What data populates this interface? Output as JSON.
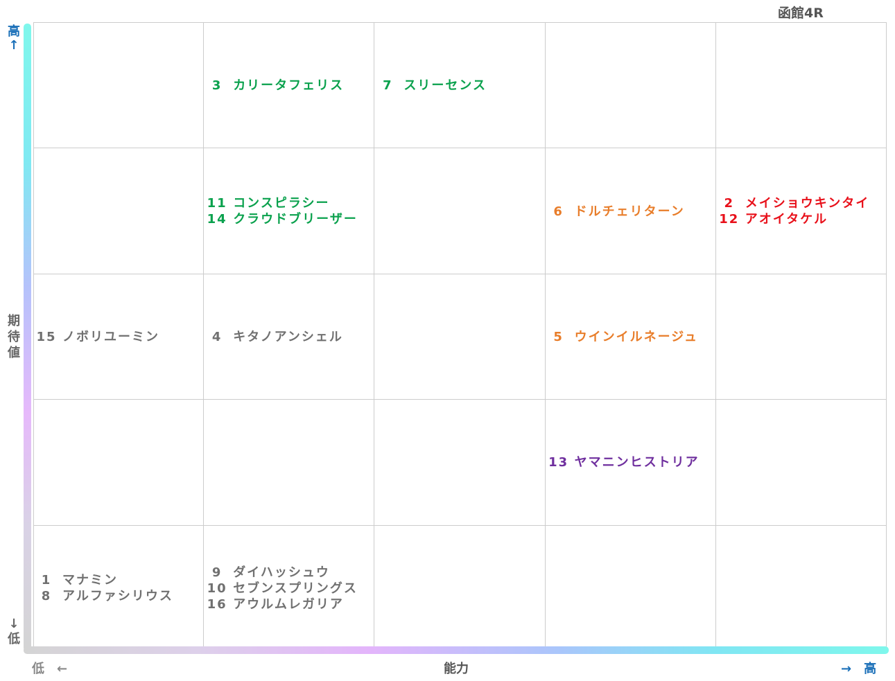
{
  "chart_data": {
    "type": "table",
    "title": "函館4R",
    "xlabel": "能力",
    "ylabel": "期待値",
    "x_low": "低　←",
    "x_high": "→　高",
    "y_high": "高↑",
    "y_low": "↓低",
    "columns": 5,
    "rows": 5,
    "cells": [
      {
        "col": 1,
        "row": 0,
        "color": "#0aa14d",
        "entries": [
          {
            "num": "3",
            "name": "カリータフェリス"
          }
        ]
      },
      {
        "col": 2,
        "row": 0,
        "color": "#0aa14d",
        "entries": [
          {
            "num": "7",
            "name": "スリーセンス"
          }
        ]
      },
      {
        "col": 1,
        "row": 1,
        "color": "#0aa14d",
        "entries": [
          {
            "num": "11",
            "name": "コンスピラシー"
          },
          {
            "num": "14",
            "name": "クラウドブリーザー"
          }
        ]
      },
      {
        "col": 3,
        "row": 1,
        "color": "#e87d2a",
        "entries": [
          {
            "num": "6",
            "name": "ドルチェリターン"
          }
        ]
      },
      {
        "col": 4,
        "row": 1,
        "color": "#e8101a",
        "entries": [
          {
            "num": "2",
            "name": "メイショウキンタイ"
          },
          {
            "num": "12",
            "name": "アオイタケル"
          }
        ]
      },
      {
        "col": 0,
        "row": 2,
        "color": "#707070",
        "entries": [
          {
            "num": "15",
            "name": "ノボリユーミン"
          }
        ]
      },
      {
        "col": 1,
        "row": 2,
        "color": "#707070",
        "entries": [
          {
            "num": "4",
            "name": "キタノアンシェル"
          }
        ]
      },
      {
        "col": 3,
        "row": 2,
        "color": "#e87d2a",
        "entries": [
          {
            "num": "5",
            "name": "ウインイルネージュ"
          }
        ]
      },
      {
        "col": 3,
        "row": 3,
        "color": "#6f2f9e",
        "entries": [
          {
            "num": "13",
            "name": "ヤマニンヒストリア"
          }
        ]
      },
      {
        "col": 0,
        "row": 4,
        "color": "#707070",
        "entries": [
          {
            "num": "1",
            "name": "マナミン"
          },
          {
            "num": "8",
            "name": "アルファシリウス"
          }
        ]
      },
      {
        "col": 1,
        "row": 4,
        "color": "#707070",
        "entries": [
          {
            "num": "9",
            "name": "ダイハッシュウ"
          },
          {
            "num": "10",
            "name": "セブンスプリングス"
          },
          {
            "num": "16",
            "name": "アウルムレガリア"
          }
        ]
      }
    ]
  }
}
